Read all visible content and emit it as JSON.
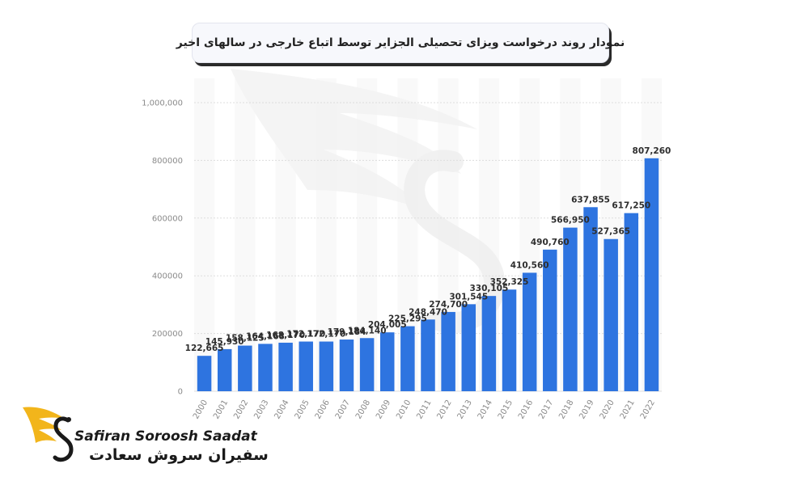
{
  "title": "نمودار روند درخواست ویزای تحصیلی الجزایر توسط اتباع خارجی در سالهای اخیر",
  "colors": {
    "bar": "#2e74e0",
    "grid": "#dddddd",
    "accent": "#f2b51b"
  },
  "brand": {
    "name_en": "Safiran Soroosh Saadat",
    "name_fa": "سفیران سروش سعادت",
    "logo_icon": "swan-wing-logo-icon"
  },
  "chart_data": {
    "type": "bar",
    "categories": [
      "2000",
      "2001",
      "2002",
      "2003",
      "2004",
      "2005",
      "2006",
      "2007",
      "2008",
      "2009",
      "2010",
      "2011",
      "2012",
      "2013",
      "2014",
      "2015",
      "2016",
      "2017",
      "2018",
      "2019",
      "2020",
      "2021",
      "2022"
    ],
    "values": [
      122665,
      145930,
      158125,
      164168,
      168170,
      172170,
      172170,
      179184,
      184140,
      204005,
      225295,
      248470,
      274700,
      301545,
      330105,
      352325,
      410560,
      490760,
      566950,
      637855,
      527365,
      617250,
      807260
    ],
    "value_labels": [
      "122,665",
      "145,930",
      "158,125",
      "164,168",
      "168,170",
      "172,170",
      "172,170",
      "179,184",
      "184,140",
      "204,005",
      "225,295",
      "248,470",
      "274,700",
      "301,545",
      "330,105",
      "352,325",
      "410,560",
      "490,760",
      "566,950",
      "637,855",
      "527,365",
      "617,250",
      "807,260"
    ],
    "ylim": [
      0,
      1000000
    ],
    "yticks": [
      0,
      200000,
      400000,
      600000,
      800000,
      1000000
    ],
    "ytick_labels": [
      "0",
      "200000",
      "400000",
      "600000",
      "800000",
      "1,000,000"
    ],
    "grid": true
  }
}
